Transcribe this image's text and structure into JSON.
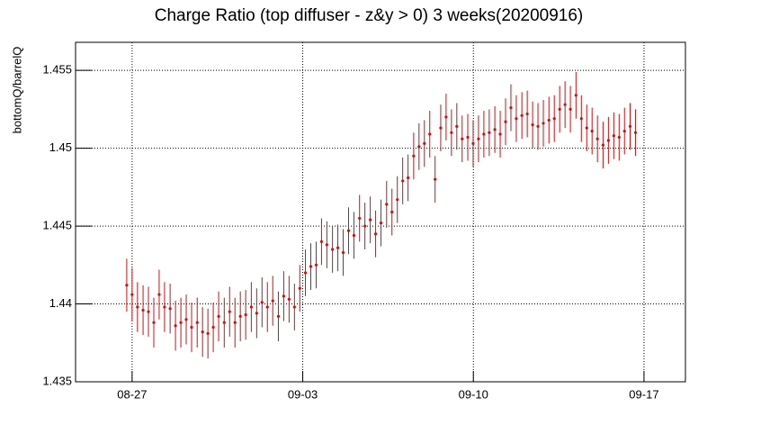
{
  "chart_data": {
    "type": "errorbar",
    "title": "Charge Ratio (top diffuser - z&y > 0) 3 weeks(20200916)",
    "y_label": "bottomQ/barrelQ",
    "color": "#d01010",
    "grid": true,
    "xlim": [
      -2.32,
      22.7
    ],
    "xticks": [
      {
        "value": 0,
        "label": "08-27"
      },
      {
        "value": 7,
        "label": "09-03"
      },
      {
        "value": 14,
        "label": "09-10"
      },
      {
        "value": 21,
        "label": "09-17"
      }
    ],
    "ylim": [
      1.435,
      1.4568
    ],
    "yticks": [
      1.435,
      1.44,
      1.445,
      1.45,
      1.455
    ],
    "x": [
      -0.22,
      0.0,
      0.22,
      0.45,
      0.67,
      0.89,
      1.11,
      1.33,
      1.56,
      1.78,
      2.0,
      2.22,
      2.44,
      2.67,
      2.89,
      3.11,
      3.33,
      3.55,
      3.78,
      4.0,
      4.22,
      4.44,
      4.66,
      4.89,
      5.11,
      5.33,
      5.55,
      5.77,
      6.0,
      6.22,
      6.44,
      6.66,
      6.88,
      7.11,
      7.33,
      7.55,
      7.77,
      7.99,
      8.22,
      8.44,
      8.66,
      8.88,
      9.1,
      9.33,
      9.55,
      9.77,
      9.99,
      10.21,
      10.44,
      10.66,
      10.88,
      11.1,
      11.32,
      11.55,
      11.77,
      11.99,
      12.21,
      12.43,
      12.66,
      12.88,
      13.1,
      13.32,
      13.54,
      13.77,
      13.99,
      14.21,
      14.43,
      14.65,
      14.88,
      15.1,
      15.32,
      15.54,
      15.76,
      15.99,
      16.21,
      16.43,
      16.65,
      16.87,
      17.1,
      17.32,
      17.54,
      17.76,
      17.98,
      18.21,
      18.43,
      18.65,
      18.87,
      19.09,
      19.32,
      19.54,
      19.76,
      19.98,
      20.2,
      20.43,
      20.65
    ],
    "values": [
      1.4412,
      1.4406,
      1.4398,
      1.4396,
      1.4395,
      1.4388,
      1.4406,
      1.4398,
      1.4397,
      1.4386,
      1.4388,
      1.439,
      1.4385,
      1.4388,
      1.4382,
      1.4381,
      1.4385,
      1.4392,
      1.4388,
      1.4395,
      1.4388,
      1.4392,
      1.4393,
      1.4398,
      1.4394,
      1.4401,
      1.4398,
      1.4402,
      1.4392,
      1.4405,
      1.4403,
      1.4398,
      1.441,
      1.442,
      1.4424,
      1.4425,
      1.444,
      1.4438,
      1.4435,
      1.4436,
      1.4433,
      1.4447,
      1.4444,
      1.4455,
      1.445,
      1.4454,
      1.4445,
      1.4452,
      1.4464,
      1.4459,
      1.4467,
      1.4479,
      1.4481,
      1.4495,
      1.4501,
      1.4503,
      1.4509,
      1.448,
      1.4513,
      1.452,
      1.451,
      1.4514,
      1.4506,
      1.4507,
      1.4503,
      1.4506,
      1.4509,
      1.451,
      1.4512,
      1.4509,
      1.4517,
      1.4526,
      1.4519,
      1.4521,
      1.4522,
      1.4515,
      1.4514,
      1.4516,
      1.4518,
      1.4519,
      1.4525,
      1.4528,
      1.4525,
      1.4534,
      1.4519,
      1.4513,
      1.4511,
      1.4506,
      1.4502,
      1.4505,
      1.4508,
      1.4507,
      1.4511,
      1.4514,
      1.451
    ],
    "errors": [
      0.0017,
      0.0017,
      0.0016,
      0.0016,
      0.0016,
      0.0016,
      0.0016,
      0.0016,
      0.0016,
      0.0016,
      0.0016,
      0.0016,
      0.0016,
      0.0016,
      0.0016,
      0.0016,
      0.0016,
      0.0016,
      0.0016,
      0.0016,
      0.0016,
      0.0016,
      0.0016,
      0.0016,
      0.0016,
      0.0016,
      0.0016,
      0.0016,
      0.0016,
      0.0016,
      0.0015,
      0.0015,
      0.0015,
      0.0015,
      0.0015,
      0.0015,
      0.0015,
      0.0015,
      0.0015,
      0.0015,
      0.0015,
      0.0015,
      0.0015,
      0.0015,
      0.0015,
      0.0015,
      0.0015,
      0.0015,
      0.0015,
      0.0015,
      0.0015,
      0.0015,
      0.0015,
      0.0015,
      0.0015,
      0.0015,
      0.0015,
      0.0015,
      0.0015,
      0.0015,
      0.0015,
      0.0015,
      0.0015,
      0.0015,
      0.0015,
      0.0015,
      0.0015,
      0.0015,
      0.0015,
      0.0015,
      0.0015,
      0.0015,
      0.0015,
      0.0015,
      0.0015,
      0.0015,
      0.0015,
      0.0015,
      0.0015,
      0.0015,
      0.0015,
      0.0015,
      0.0015,
      0.0015,
      0.0015,
      0.0015,
      0.0015,
      0.0015,
      0.0015,
      0.0015,
      0.0015,
      0.0015,
      0.0015,
      0.0015,
      0.0015
    ]
  }
}
